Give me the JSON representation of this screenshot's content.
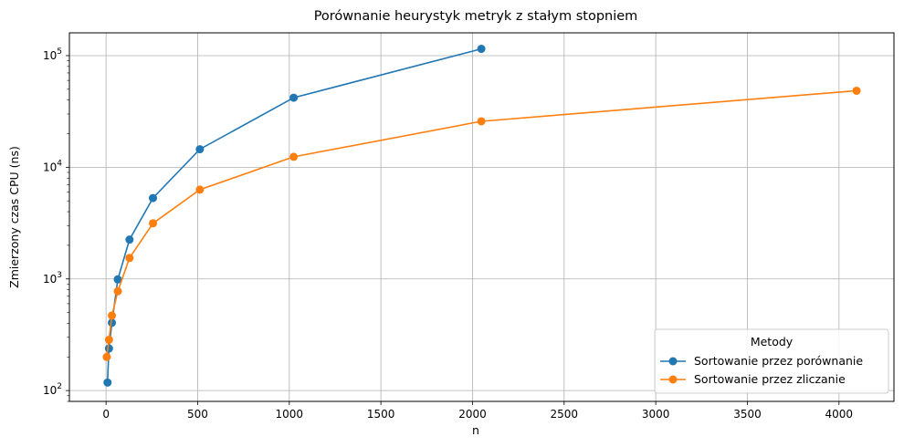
{
  "chart_data": {
    "type": "line",
    "title": "Porównanie heurystyk metryk z stałym stopniem",
    "xlabel": "n",
    "ylabel": "Zmierzony czas CPU (ns)",
    "xlim": [
      -200,
      4300
    ],
    "ylim": [
      80,
      160000
    ],
    "yscale": "log",
    "grid": true,
    "x_ticks": [
      0,
      500,
      1000,
      1500,
      2000,
      2500,
      3000,
      3500,
      4000
    ],
    "y_ticks": [
      {
        "value": 100,
        "base": "10",
        "exp": "2"
      },
      {
        "value": 1000,
        "base": "10",
        "exp": "3"
      },
      {
        "value": 10000,
        "base": "10",
        "exp": "4"
      },
      {
        "value": 100000,
        "base": "10",
        "exp": "5"
      }
    ],
    "legend": {
      "title": "Metody",
      "position": "lower right"
    },
    "series": [
      {
        "name": "Sortowanie przez porównanie",
        "color": "#1f77b4",
        "x": [
          8,
          16,
          32,
          64,
          128,
          256,
          512,
          1024,
          2048
        ],
        "y": [
          118,
          238,
          405,
          990,
          2250,
          5300,
          14500,
          42000,
          115000
        ]
      },
      {
        "name": "Sortowanie przez zliczanie",
        "color": "#ff7f0e",
        "x": [
          4,
          16,
          32,
          64,
          128,
          256,
          512,
          1024,
          2048,
          4096
        ],
        "y": [
          200,
          285,
          470,
          775,
          1540,
          3150,
          6300,
          12400,
          25800,
          48500
        ]
      }
    ]
  }
}
